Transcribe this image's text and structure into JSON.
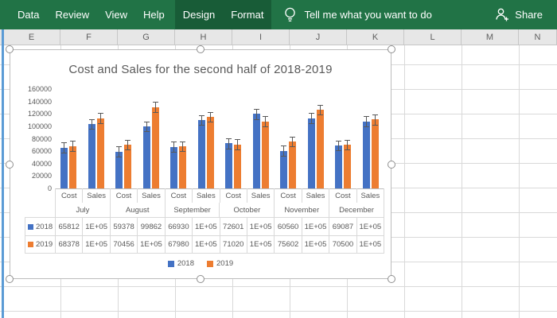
{
  "ribbon": {
    "tabs": [
      {
        "label": "Data",
        "contextual": false
      },
      {
        "label": "Review",
        "contextual": false
      },
      {
        "label": "View",
        "contextual": false
      },
      {
        "label": "Help",
        "contextual": false
      },
      {
        "label": "Design",
        "contextual": true
      },
      {
        "label": "Format",
        "contextual": true
      }
    ],
    "tell_me_label": "Tell me what you want to do",
    "share_label": "Share",
    "colors": {
      "ribbon_green": "#217346",
      "contextual_green": "#185c37"
    }
  },
  "sheet": {
    "column_headers": [
      "E",
      "F",
      "G",
      "H",
      "I",
      "J",
      "K",
      "L",
      "M",
      "N"
    ],
    "selection_accent": "#5b9bd5"
  },
  "chart_data": {
    "type": "bar",
    "title": "Cost and Sales for the second half of 2018-2019",
    "months": [
      "July",
      "August",
      "September",
      "October",
      "November",
      "December"
    ],
    "subcategories": [
      "Cost",
      "Sales"
    ],
    "series": [
      {
        "name": "2018",
        "color": "#4472c4",
        "values": [
          65812,
          104000,
          59378,
          99862,
          66930,
          110000,
          72601,
          120000,
          60560,
          113000,
          69087,
          108000
        ],
        "table_labels": [
          "65812",
          "1E+05",
          "59378",
          "99862",
          "66930",
          "1E+05",
          "72601",
          "1E+05",
          "60560",
          "1E+05",
          "69087",
          "1E+05"
        ]
      },
      {
        "name": "2019",
        "color": "#ed7d31",
        "values": [
          68378,
          113000,
          70456,
          131000,
          67980,
          115000,
          71020,
          108000,
          75602,
          127000,
          70500,
          111000
        ],
        "table_labels": [
          "68378",
          "1E+05",
          "70456",
          "1E+05",
          "67980",
          "1E+05",
          "71020",
          "1E+05",
          "75602",
          "1E+05",
          "70500",
          "1E+05"
        ]
      }
    ],
    "error_bar_value": 8000,
    "ylim": [
      0,
      160000
    ],
    "ytick_step": 20000,
    "ytick_labels": [
      "0",
      "20000",
      "40000",
      "60000",
      "80000",
      "100000",
      "120000",
      "140000",
      "160000"
    ],
    "legend": [
      "2018",
      "2019"
    ],
    "legend_position": "bottom",
    "gridlines": false,
    "show_data_table": true
  }
}
